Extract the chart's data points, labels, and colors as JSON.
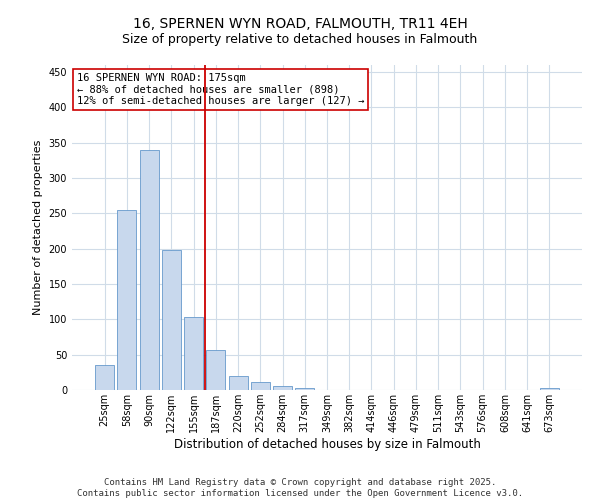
{
  "title": "16, SPERNEN WYN ROAD, FALMOUTH, TR11 4EH",
  "subtitle": "Size of property relative to detached houses in Falmouth",
  "xlabel": "Distribution of detached houses by size in Falmouth",
  "ylabel": "Number of detached properties",
  "categories": [
    "25sqm",
    "58sqm",
    "90sqm",
    "122sqm",
    "155sqm",
    "187sqm",
    "220sqm",
    "252sqm",
    "284sqm",
    "317sqm",
    "349sqm",
    "382sqm",
    "414sqm",
    "446sqm",
    "479sqm",
    "511sqm",
    "543sqm",
    "576sqm",
    "608sqm",
    "641sqm",
    "673sqm"
  ],
  "values": [
    35,
    255,
    340,
    198,
    103,
    57,
    20,
    12,
    5,
    3,
    0,
    0,
    0,
    0,
    0,
    0,
    0,
    0,
    0,
    0,
    3
  ],
  "bar_color": "#c8d8ed",
  "bar_edgecolor": "#6699cc",
  "vline_index": 5,
  "vline_color": "#cc0000",
  "annotation_text": "16 SPERNEN WYN ROAD: 175sqm\n← 88% of detached houses are smaller (898)\n12% of semi-detached houses are larger (127) →",
  "annotation_box_facecolor": "#ffffff",
  "annotation_box_edgecolor": "#cc0000",
  "ylim": [
    0,
    460
  ],
  "yticks": [
    0,
    50,
    100,
    150,
    200,
    250,
    300,
    350,
    400,
    450
  ],
  "background_color": "#ffffff",
  "grid_color": "#d0dce8",
  "footer_text": "Contains HM Land Registry data © Crown copyright and database right 2025.\nContains public sector information licensed under the Open Government Licence v3.0.",
  "title_fontsize": 10,
  "subtitle_fontsize": 9,
  "ylabel_fontsize": 8,
  "xlabel_fontsize": 8.5,
  "annotation_fontsize": 7.5,
  "tick_fontsize": 7,
  "footer_fontsize": 6.5
}
